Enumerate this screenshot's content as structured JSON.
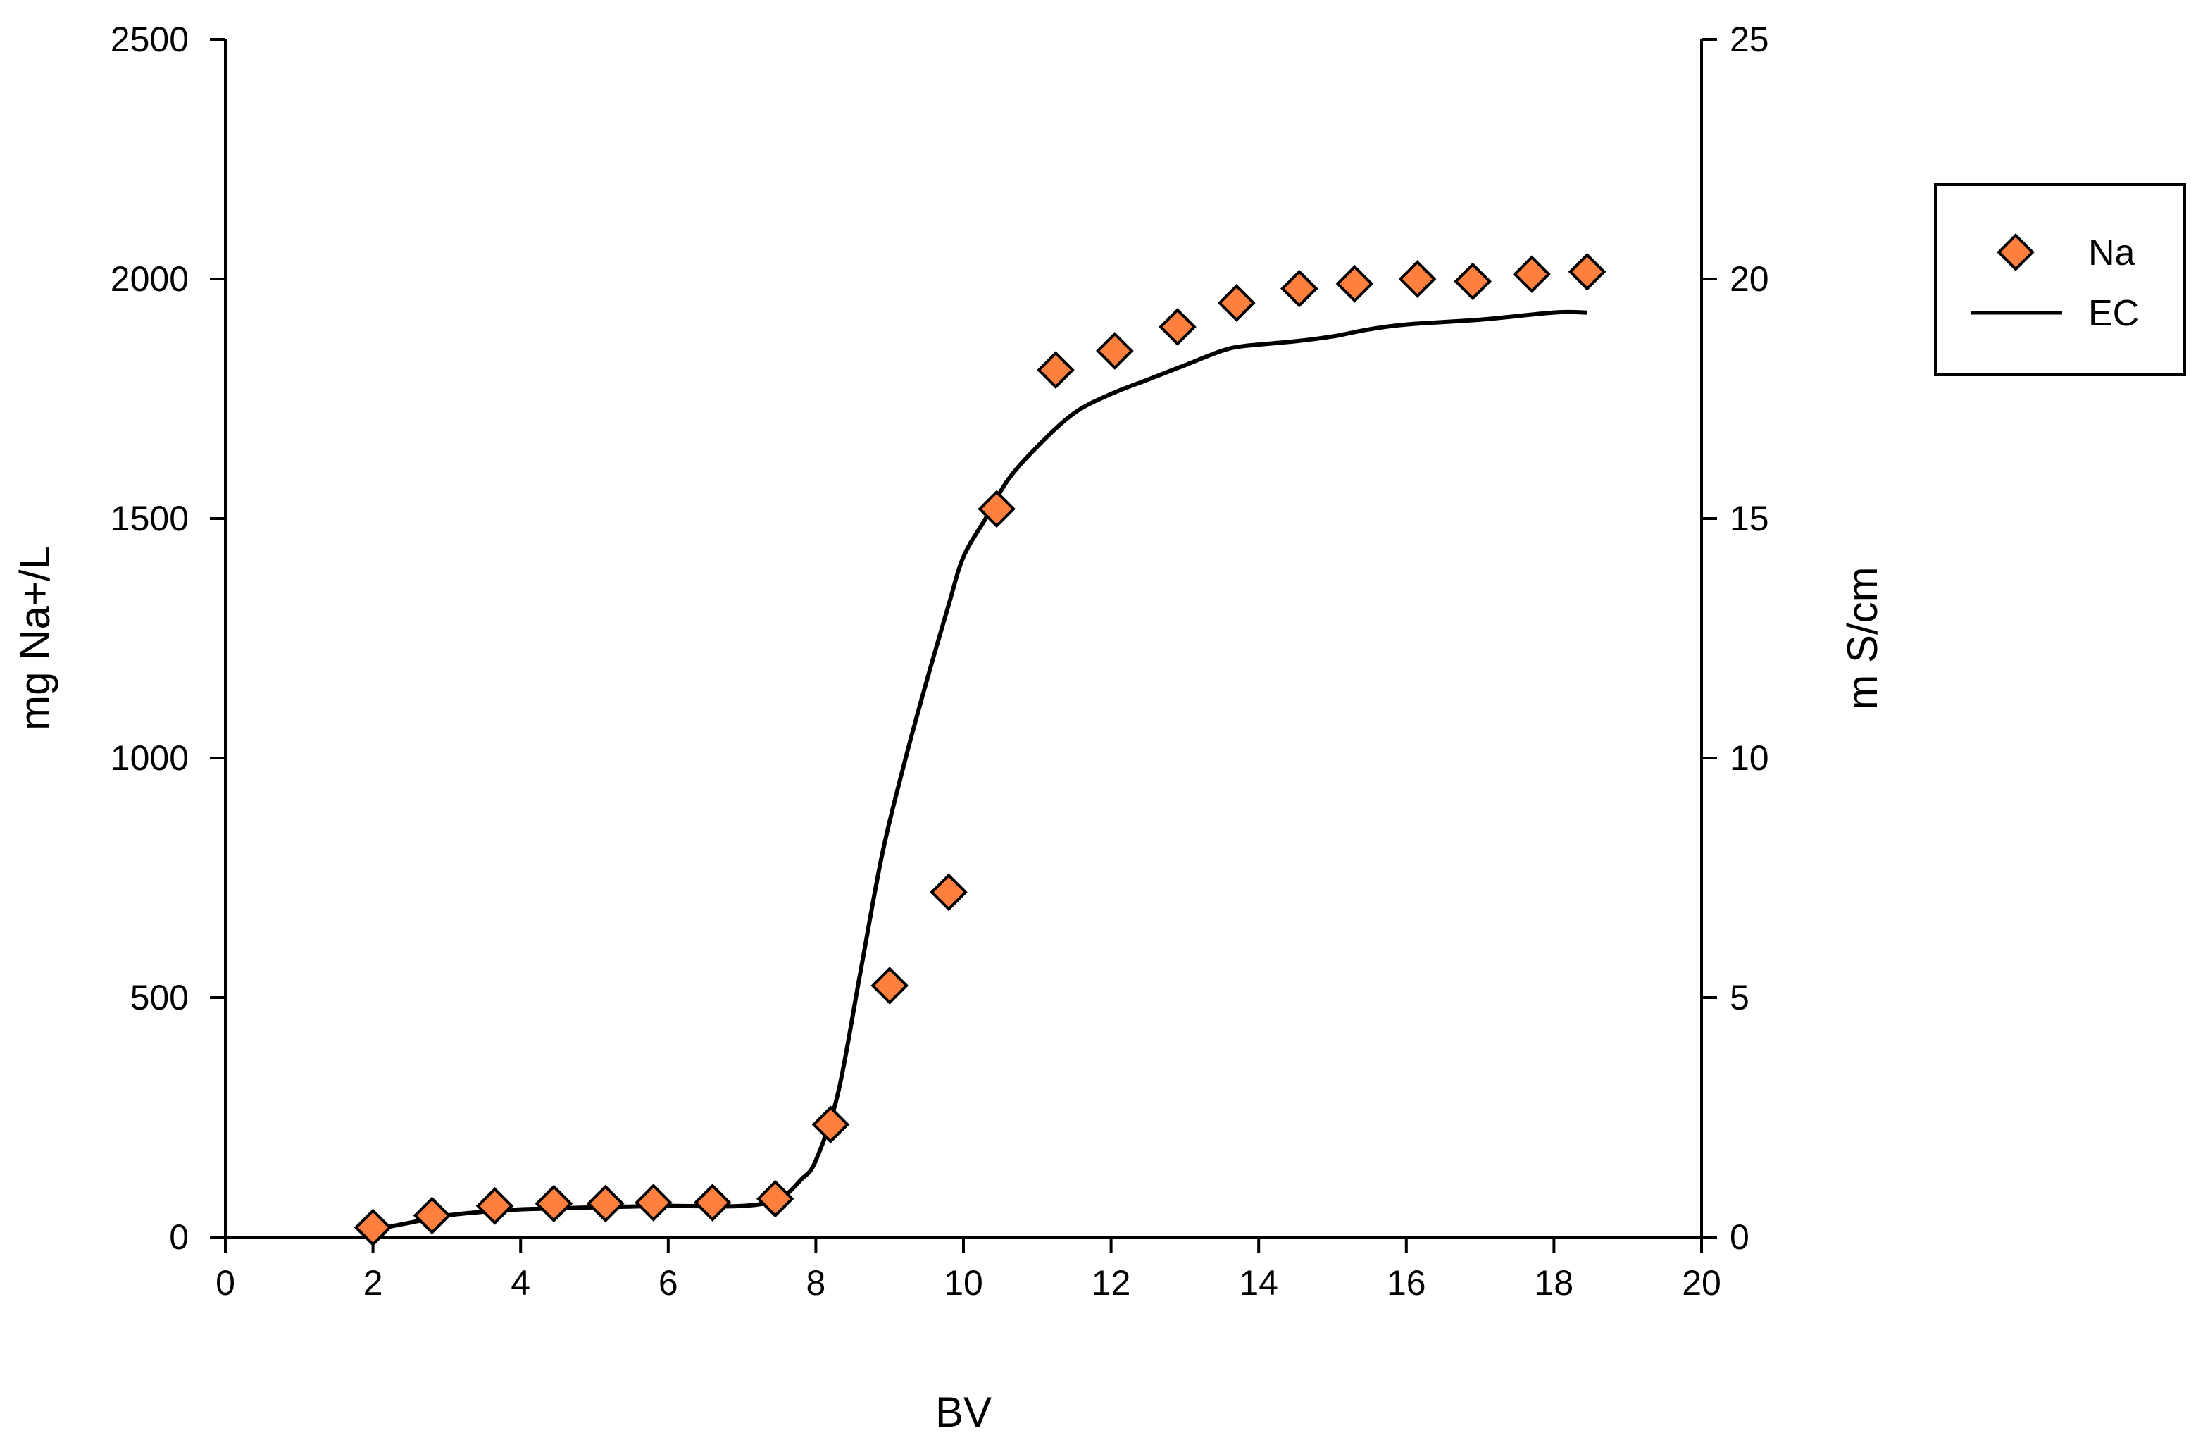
{
  "chart_data": {
    "type": "scatter",
    "xlabel": "BV",
    "ylabel": "mg Na+/L",
    "y2label": "m S/cm",
    "xlim": [
      0,
      20
    ],
    "ylim": [
      0,
      2500
    ],
    "y2lim": [
      0,
      25
    ],
    "x_ticks": [
      "0",
      "2",
      "4",
      "6",
      "8",
      "10",
      "12",
      "14",
      "16",
      "18",
      "20"
    ],
    "y_ticks": [
      "0",
      "500",
      "1000",
      "1500",
      "2000",
      "2500"
    ],
    "y2_ticks": [
      "0",
      "5",
      "10",
      "15",
      "20",
      "25"
    ],
    "grid": false,
    "legend_position": "right",
    "series": [
      {
        "name": "Na",
        "type": "scatter",
        "marker": "diamond",
        "color": "#ff7f3f",
        "axis": "left",
        "x": [
          2.0,
          2.8,
          3.65,
          4.45,
          5.15,
          5.8,
          6.6,
          7.45,
          8.2,
          9.0,
          9.8,
          10.45,
          11.25,
          12.05,
          12.9,
          13.7,
          14.55,
          15.3,
          16.15,
          16.9,
          17.7,
          18.45
        ],
        "y": [
          20,
          45,
          65,
          70,
          70,
          72,
          72,
          80,
          235,
          525,
          720,
          1520,
          1810,
          1850,
          1900,
          1950,
          1980,
          1990,
          2000,
          1995,
          2010,
          2015
        ]
      },
      {
        "name": "EC",
        "type": "line",
        "color": "#000000",
        "axis": "right",
        "x": [
          2.0,
          2.5,
          3.0,
          3.5,
          4.0,
          4.5,
          5.0,
          6.0,
          7.0,
          7.5,
          7.8,
          8.0,
          8.3,
          8.6,
          8.9,
          9.2,
          9.5,
          9.8,
          10.0,
          10.3,
          10.6,
          11.0,
          11.5,
          12.0,
          12.5,
          13.0,
          13.5,
          13.8,
          14.5,
          15.0,
          15.5,
          16.0,
          17.0,
          18.0,
          18.45
        ],
        "y": [
          0.15,
          0.3,
          0.45,
          0.53,
          0.58,
          0.6,
          0.62,
          0.65,
          0.65,
          0.8,
          1.2,
          1.6,
          3.0,
          5.5,
          8.0,
          9.9,
          11.6,
          13.2,
          14.2,
          15.0,
          15.8,
          16.5,
          17.2,
          17.6,
          17.9,
          18.2,
          18.5,
          18.6,
          18.7,
          18.8,
          18.95,
          19.05,
          19.15,
          19.3,
          19.3
        ]
      }
    ]
  }
}
